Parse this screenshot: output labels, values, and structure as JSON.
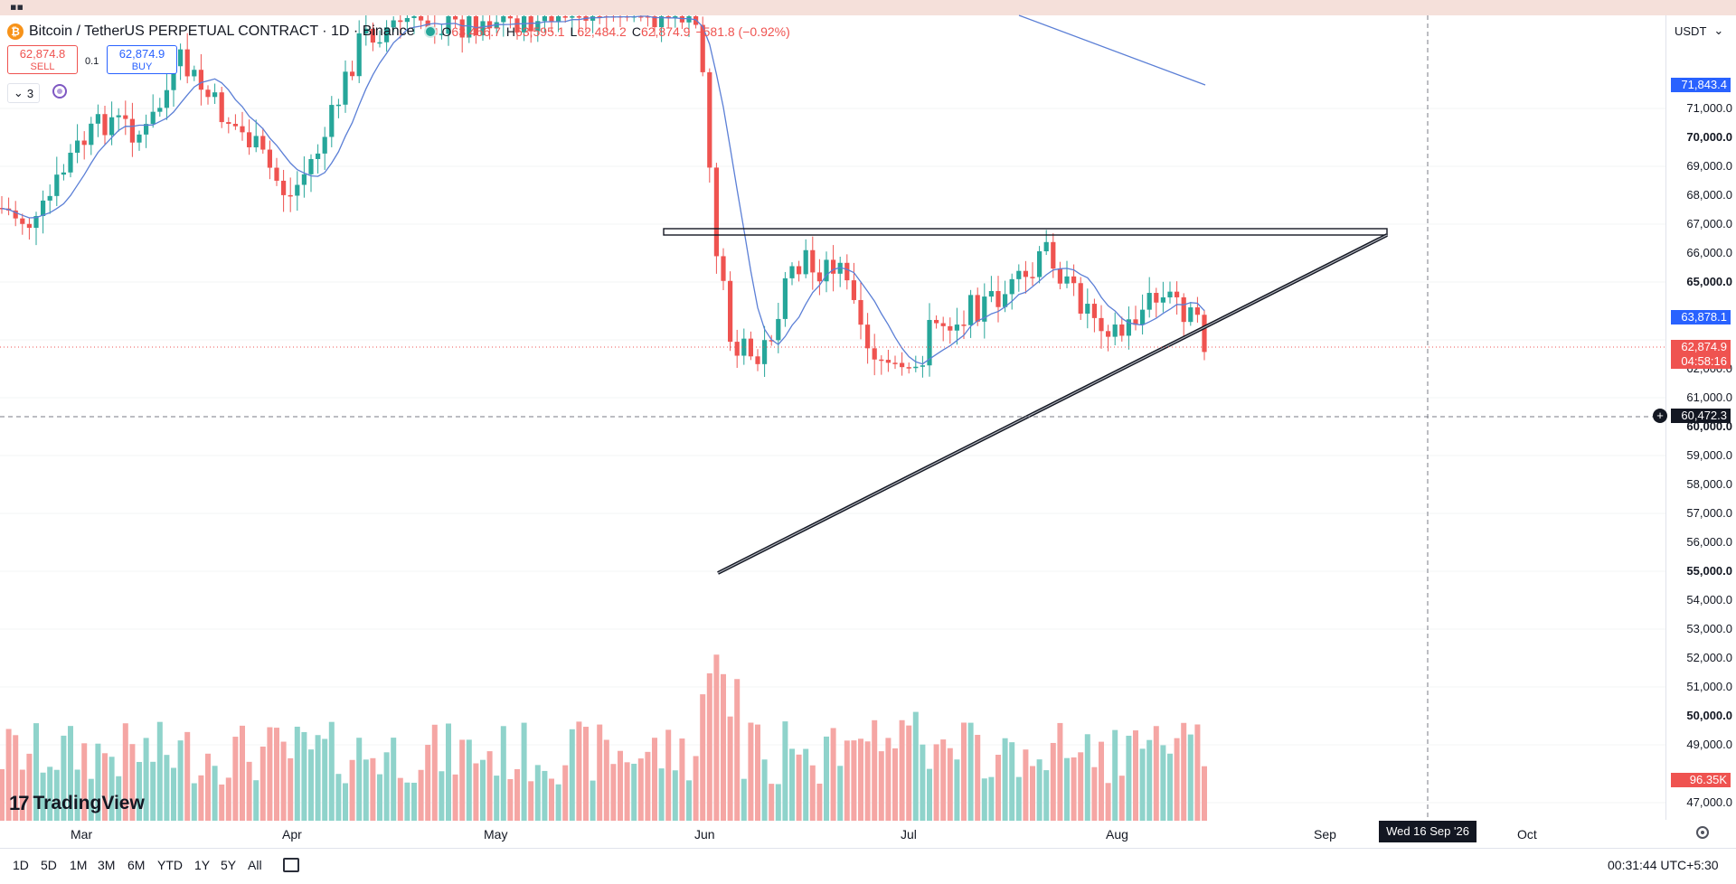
{
  "header": {
    "symbol": "Bitcoin / TetherUS PERPETUAL CONTRACT · 1D · Binance",
    "coin_letter": "₿",
    "ohlc": {
      "o_label": "O",
      "o": "63,456.7",
      "h_label": "H",
      "h": "63,595.1",
      "l_label": "L",
      "l": "62,484.2",
      "c_label": "C",
      "c": "62,874.9",
      "change": "−581.8 (−0.92%)"
    }
  },
  "trade": {
    "sell_price": "62,874.8",
    "sell_label": "SELL",
    "buy_price": "62,874.9",
    "buy_label": "BUY",
    "spread": "0.1"
  },
  "indicators": {
    "count": "3"
  },
  "currency": "USDT",
  "price_axis": {
    "labels": [
      "71,000.0",
      "70,000.0",
      "69,000.0",
      "68,000.0",
      "67,000.0",
      "66,000.0",
      "65,000.0",
      "62,000.0",
      "61,000.0",
      "60,000.0",
      "59,000.0",
      "58,000.0",
      "57,000.0",
      "56,000.0",
      "55,000.0",
      "54,000.0",
      "53,000.0",
      "52,000.0",
      "51,000.0",
      "50,000.0",
      "49,000.0",
      "47,000.0"
    ],
    "bold_labels": [
      "70,000.0",
      "65,000.0",
      "60,000.0",
      "55,000.0",
      "50,000.0"
    ],
    "tag_top": "71,843.4",
    "tag_ma": "63,878.1",
    "tag_price": "62,874.9",
    "tag_countdown": "04:58:16",
    "tag_crosshair": "60,472.3",
    "tag_volume": "96.35K"
  },
  "time_axis": {
    "months": [
      "Mar",
      "Apr",
      "May",
      "Jun",
      "Jul",
      "Aug",
      "Sep",
      "Oct"
    ],
    "crosshair_date": "Wed 16 Sep '26"
  },
  "ranges": [
    "1D",
    "5D",
    "1M",
    "3M",
    "6M",
    "YTD",
    "1Y",
    "5Y",
    "All"
  ],
  "clock": "00:31:44 UTC+5:30",
  "brand": "TradingView",
  "colors": {
    "up": "#26a69a",
    "down": "#ef5350",
    "ma": "#5b7fd6",
    "accent": "#2962ff"
  },
  "chart_data": {
    "type": "candlestick",
    "timeframe": "1D",
    "last_price": 62874.9,
    "drawings": {
      "resistance_zone": [
        66800,
        67000
      ],
      "ascending_trendline": "from 55,000 in early June to 66,800 in mid-September",
      "crosshair_price": 60472.3
    }
  }
}
